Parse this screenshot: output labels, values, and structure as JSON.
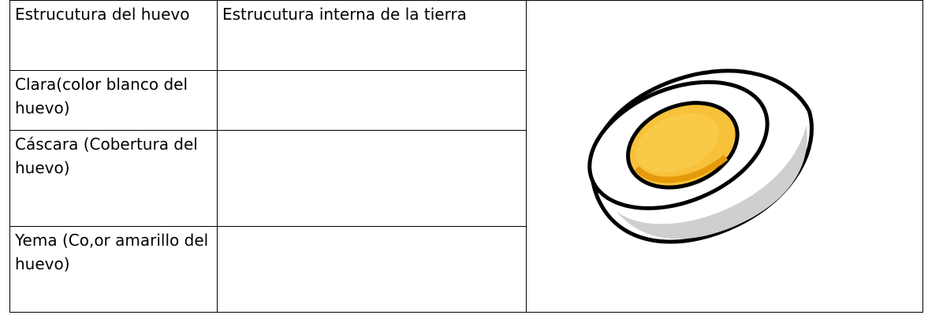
{
  "table": {
    "header": [
      "Estrucutura del huevo",
      "Estrucutura interna de la tierra"
    ],
    "rows": [
      [
        "Clara(color blanco del huevo)"
      ],
      [
        "Cáscara (Cobertura del huevo)"
      ],
      [
        "Yema (Co,or amarillo del huevo)"
      ]
    ]
  }
}
